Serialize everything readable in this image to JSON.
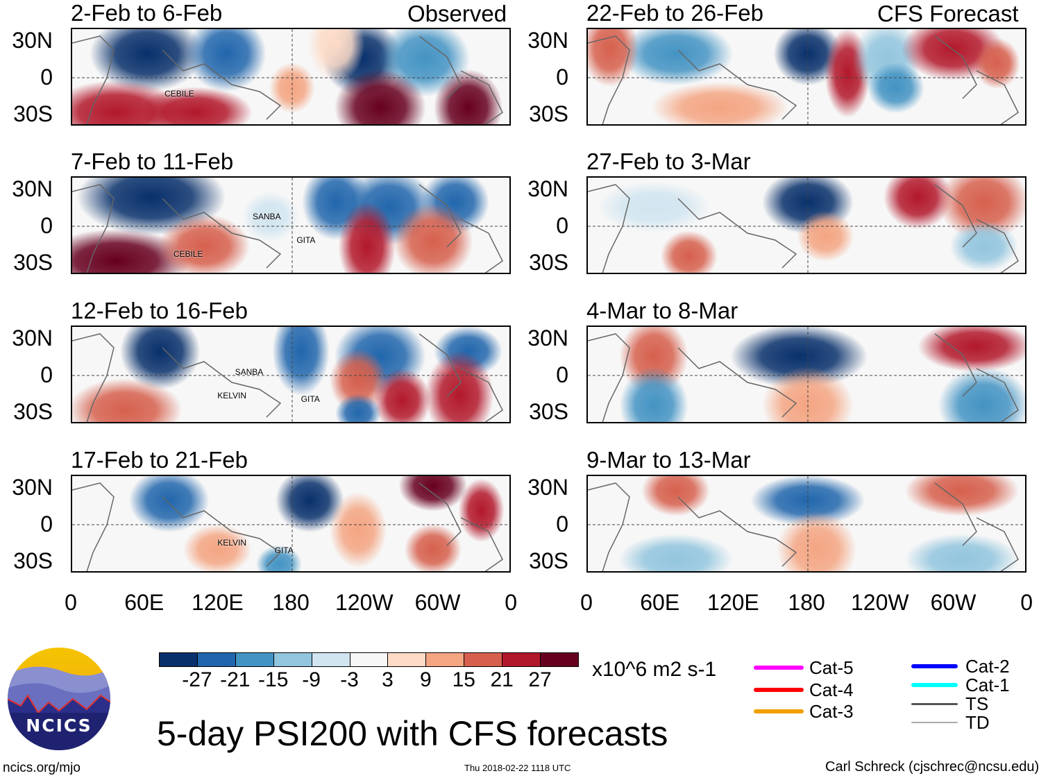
{
  "left_header": "Observed",
  "right_header": "CFS Forecast",
  "panels_left": [
    {
      "title": "2-Feb to 6-Feb",
      "storms": [
        "CEBILE"
      ]
    },
    {
      "title": "7-Feb to 11-Feb",
      "storms": [
        "SANBA",
        "GITA",
        "CEBILE"
      ]
    },
    {
      "title": "12-Feb to 16-Feb",
      "storms": [
        "SANBA",
        "KELVIN",
        "GITA"
      ]
    },
    {
      "title": "17-Feb to 21-Feb",
      "storms": [
        "KELVIN",
        "GITA"
      ]
    }
  ],
  "panels_right": [
    {
      "title": "22-Feb to 26-Feb"
    },
    {
      "title": "27-Feb to 3-Mar"
    },
    {
      "title": "4-Mar to 8-Mar"
    },
    {
      "title": "9-Mar to 13-Mar"
    }
  ],
  "lat_labels": [
    "30N",
    "0",
    "30S"
  ],
  "lon_labels": [
    "0",
    "60E",
    "120E",
    "180",
    "120W",
    "60W",
    "0"
  ],
  "colorbar": {
    "colors": [
      "#08306b",
      "#2166ac",
      "#4393c3",
      "#92c5de",
      "#d1e5f0",
      "#f7f7f7",
      "#fddbc7",
      "#f4a582",
      "#d6604d",
      "#b2182b",
      "#67001f"
    ],
    "labels": [
      "-27",
      "-21",
      "-15",
      "-9",
      "-3",
      "3",
      "9",
      "15",
      "21",
      "27"
    ],
    "units": "x10^6 m2 s-1"
  },
  "legend": [
    {
      "label": "Cat-5",
      "color": "#ff00ff"
    },
    {
      "label": "Cat-4",
      "color": "#ff0000"
    },
    {
      "label": "Cat-3",
      "color": "#f0a000"
    },
    {
      "label": "Cat-2",
      "color": "#0000ff"
    },
    {
      "label": "Cat-1",
      "color": "#00ffff"
    },
    {
      "label": "TS",
      "color": "#555555"
    },
    {
      "label": "TD",
      "color": "#aaaaaa"
    }
  ],
  "main_title": "5-day PSI200 with CFS forecasts",
  "logo_text": "NCICS",
  "footer": {
    "url": "ncics.org/mjo",
    "timestamp": "Thu 2018-02-22 1118 UTC",
    "author": "Carl Schreck (cjschrec@ncsu.edu)"
  }
}
